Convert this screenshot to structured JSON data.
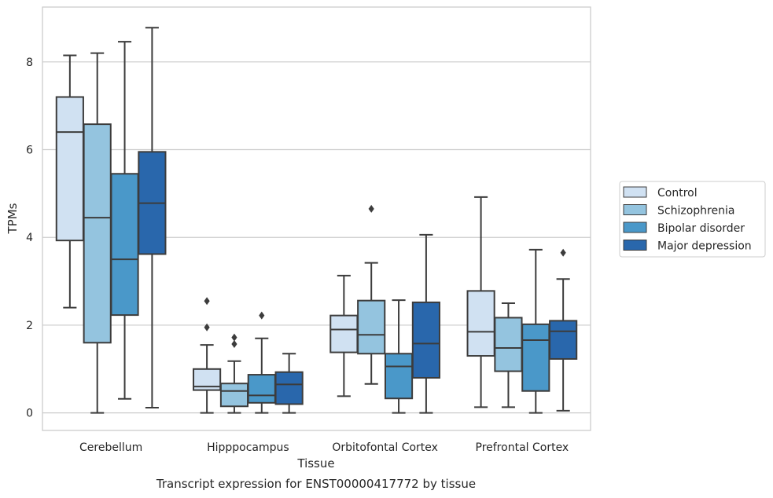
{
  "chart_data": {
    "type": "boxplot",
    "title": "",
    "xlabel": "Tissue",
    "ylabel": "TPMs",
    "caption": "Transcript expression for ENST00000417772 by tissue",
    "ylim": [
      -0.4,
      9.25
    ],
    "yticks": [
      0,
      2,
      4,
      6,
      8
    ],
    "grid": "horizontal",
    "legend_position": "right",
    "categories": [
      "Cerebellum",
      "Hipppocampus",
      "Orbitofontal Cortex",
      "Prefrontal Cortex"
    ],
    "series": [
      {
        "name": "Control",
        "color": "#d0e1f2",
        "boxes": [
          {
            "whislo": 2.4,
            "q1": 3.93,
            "med": 6.4,
            "q3": 7.2,
            "whishi": 8.15,
            "fliers": []
          },
          {
            "whislo": 0.0,
            "q1": 0.52,
            "med": 0.6,
            "q3": 1.0,
            "whishi": 1.55,
            "fliers": [
              1.95,
              2.55
            ]
          },
          {
            "whislo": 0.38,
            "q1": 1.38,
            "med": 1.9,
            "q3": 2.22,
            "whishi": 3.13,
            "fliers": []
          },
          {
            "whislo": 0.13,
            "q1": 1.3,
            "med": 1.85,
            "q3": 2.78,
            "whishi": 4.92,
            "fliers": []
          }
        ]
      },
      {
        "name": "Schizophrenia",
        "color": "#94c4df",
        "boxes": [
          {
            "whislo": 0.0,
            "q1": 1.6,
            "med": 4.45,
            "q3": 6.58,
            "whishi": 8.2,
            "fliers": []
          },
          {
            "whislo": 0.0,
            "q1": 0.15,
            "med": 0.5,
            "q3": 0.67,
            "whishi": 1.18,
            "fliers": [
              1.57,
              1.72
            ]
          },
          {
            "whislo": 0.66,
            "q1": 1.35,
            "med": 1.78,
            "q3": 2.56,
            "whishi": 3.42,
            "fliers": [
              4.65
            ]
          },
          {
            "whislo": 0.13,
            "q1": 0.95,
            "med": 1.48,
            "q3": 2.17,
            "whishi": 2.5,
            "fliers": []
          }
        ]
      },
      {
        "name": "Bipolar disorder",
        "color": "#4a98c9",
        "boxes": [
          {
            "whislo": 0.32,
            "q1": 2.23,
            "med": 3.5,
            "q3": 5.45,
            "whishi": 8.46,
            "fliers": []
          },
          {
            "whislo": 0.0,
            "q1": 0.23,
            "med": 0.4,
            "q3": 0.87,
            "whishi": 1.7,
            "fliers": [
              2.22
            ]
          },
          {
            "whislo": 0.0,
            "q1": 0.33,
            "med": 1.06,
            "q3": 1.35,
            "whishi": 2.57,
            "fliers": []
          },
          {
            "whislo": 0.0,
            "q1": 0.5,
            "med": 1.66,
            "q3": 2.02,
            "whishi": 3.72,
            "fliers": []
          }
        ]
      },
      {
        "name": "Major depression",
        "color": "#2967ac",
        "boxes": [
          {
            "whislo": 0.12,
            "q1": 3.62,
            "med": 4.78,
            "q3": 5.95,
            "whishi": 8.78,
            "fliers": []
          },
          {
            "whislo": 0.0,
            "q1": 0.2,
            "med": 0.65,
            "q3": 0.93,
            "whishi": 1.35,
            "fliers": []
          },
          {
            "whislo": 0.0,
            "q1": 0.8,
            "med": 1.58,
            "q3": 2.52,
            "whishi": 4.06,
            "fliers": []
          },
          {
            "whislo": 0.05,
            "q1": 1.23,
            "med": 1.86,
            "q3": 2.1,
            "whishi": 3.05,
            "fliers": [
              3.65
            ]
          }
        ]
      }
    ]
  }
}
